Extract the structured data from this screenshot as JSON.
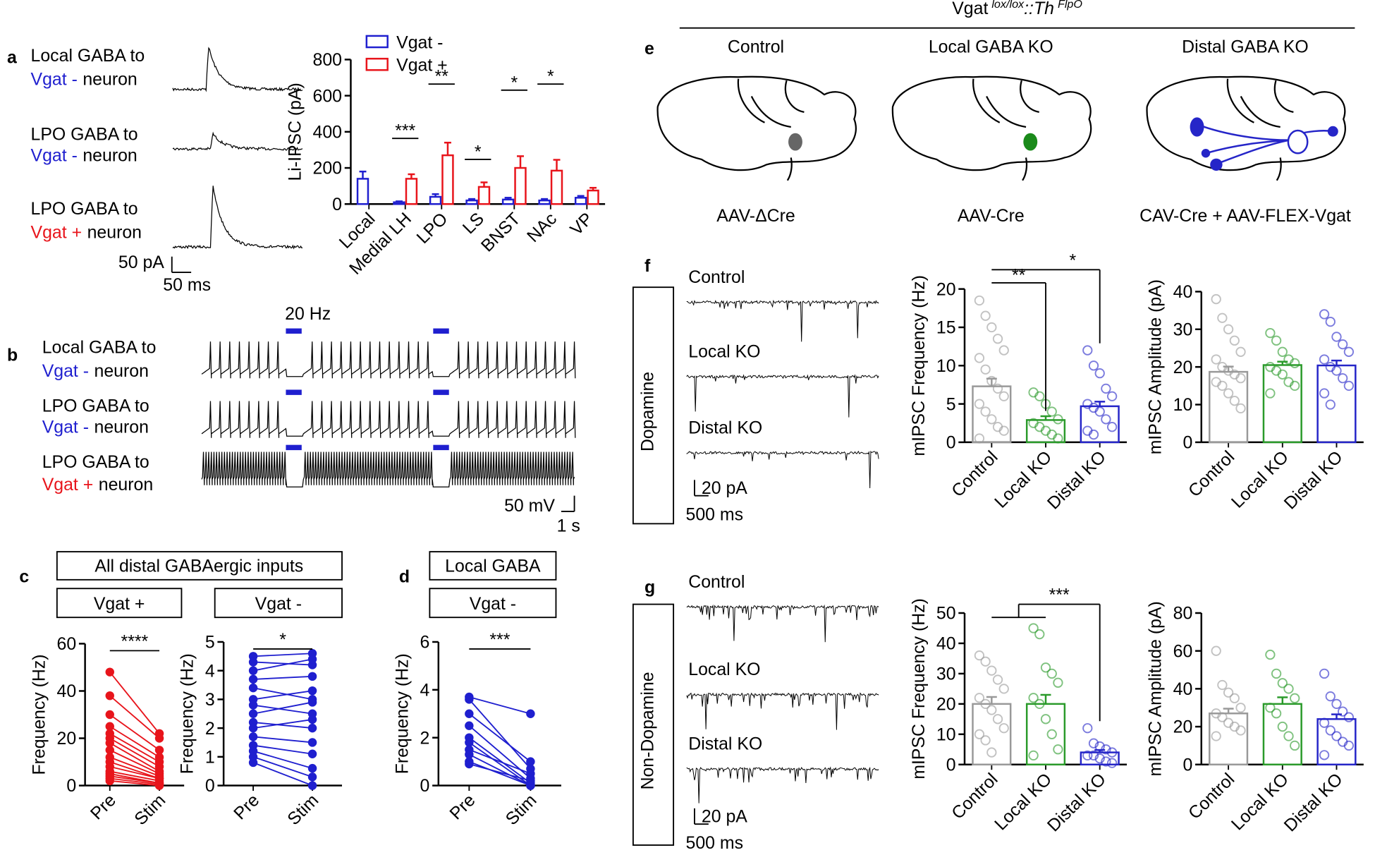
{
  "panels": [
    "a",
    "b",
    "c",
    "d",
    "e",
    "f",
    "g"
  ],
  "a_rows": [
    {
      "line1": "Local GABA to",
      "cell": "Vgat -",
      "rest": "neuron",
      "color": "#1f1fcf"
    },
    {
      "line1": "LPO GABA to",
      "cell": "Vgat -",
      "rest": "neuron",
      "color": "#1f1fcf"
    },
    {
      "line1": "LPO GABA to",
      "cell": "Vgat +",
      "rest": "neuron",
      "color": "#e8141b"
    }
  ],
  "a_scale": [
    "50 pA",
    "50 ms"
  ],
  "b_rows": [
    {
      "line1": "Local GABA to",
      "cell": "Vgat -",
      "rest": "neuron",
      "color": "#1f1fcf"
    },
    {
      "line1": "LPO GABA to",
      "cell": "Vgat -",
      "rest": "neuron",
      "color": "#1f1fcf"
    },
    {
      "line1": "LPO GABA to",
      "cell": "Vgat +",
      "rest": "neuron",
      "color": "#e8141b"
    }
  ],
  "b_stim": "20 Hz",
  "b_scale": [
    "50 mV",
    "1 s"
  ],
  "c_header": "All distal GABAergic inputs",
  "d_header": "Local GABA",
  "e": {
    "title": "Vgat",
    "sup1": "lox/lox",
    "mid": "::Th",
    "sup2": "FlpO",
    "columns": [
      "Control",
      "Local GABA KO",
      "Distal GABA KO"
    ],
    "viruses": [
      "AAV-ΔCre",
      "AAV-Cre",
      "CAV-Cre + AAV-FLEX-Vgat"
    ]
  },
  "f": {
    "group": "Dopamine",
    "traces": [
      "Control",
      "Local KO",
      "Distal KO"
    ],
    "scale": [
      "20 pA",
      "500 ms"
    ]
  },
  "g": {
    "group": "Non-Dopamine",
    "traces": [
      "Control",
      "Local KO",
      "Distal KO"
    ],
    "scale": [
      "20 pA",
      "500 ms"
    ]
  },
  "chart_data": [
    {
      "type": "bar",
      "ylabel": "Li-IPSC (pA)",
      "categories": [
        "Local",
        "Medial LH",
        "LPO",
        "LS",
        "BNST",
        "NAc",
        "VP"
      ],
      "series": [
        {
          "name": "Vgat -",
          "color": "#1f1fcf",
          "values": [
            140,
            10,
            40,
            20,
            25,
            20,
            35
          ],
          "errors": [
            40,
            5,
            15,
            8,
            10,
            8,
            10
          ]
        },
        {
          "name": "Vgat +",
          "color": "#e8141b",
          "values": [
            null,
            140,
            270,
            95,
            200,
            185,
            75
          ],
          "errors": [
            null,
            25,
            70,
            25,
            65,
            60,
            15
          ]
        }
      ],
      "significance": [
        null,
        "***",
        "**",
        "*",
        "*",
        "*",
        null
      ],
      "ylim": [
        0,
        800
      ],
      "yticks": [
        0,
        200,
        400,
        600,
        800
      ]
    },
    {
      "type": "paired",
      "title": "Vgat +",
      "ylabel": "Frequency (Hz)",
      "categories": [
        "Pre",
        "Stim"
      ],
      "color": "#e8141b",
      "values": [
        [
          48,
          38,
          30,
          25,
          22,
          20,
          18,
          15,
          12,
          10,
          8,
          6,
          5,
          4,
          3,
          2
        ],
        [
          22,
          20,
          15,
          12,
          10,
          8,
          6,
          5,
          4,
          3,
          3,
          2,
          1,
          1,
          0.5,
          0
        ]
      ],
      "significance": "****",
      "ylim": [
        0,
        60
      ],
      "yticks": [
        0,
        20,
        40,
        60
      ]
    },
    {
      "type": "paired",
      "title": "Vgat -",
      "ylabel": "Frequency (Hz)",
      "categories": [
        "Pre",
        "Stim"
      ],
      "color": "#1f1fcf",
      "values": [
        [
          4.5,
          4.3,
          4.0,
          3.7,
          3.4,
          3.0,
          2.8,
          2.5,
          2.2,
          2.0,
          1.7,
          1.4,
          1.2,
          1.0,
          0.8
        ],
        [
          4.6,
          4.2,
          4.4,
          3.8,
          3.0,
          3.3,
          2.5,
          2.9,
          2.0,
          2.3,
          1.5,
          1.1,
          0.6,
          0.3,
          0
        ]
      ],
      "significance": "*",
      "ylim": [
        0,
        5
      ],
      "yticks": [
        0,
        1,
        2,
        3,
        4,
        5
      ]
    },
    {
      "type": "paired",
      "title": "Vgat -",
      "ylabel": "Frequency (Hz)",
      "categories": [
        "Pre",
        "Stim"
      ],
      "color": "#1f1fcf",
      "values": [
        [
          3.7,
          3.6,
          3.0,
          2.5,
          2.0,
          1.8,
          1.5,
          1.3,
          1.0,
          0.9
        ],
        [
          3.0,
          0.7,
          1.0,
          0.3,
          0.1,
          0,
          0.5,
          0,
          0,
          0.2
        ]
      ],
      "significance": "***",
      "ylim": [
        0,
        6
      ],
      "yticks": [
        0,
        2,
        4,
        6
      ]
    },
    {
      "type": "bar",
      "ylabel": "mIPSC Frequency (Hz)",
      "categories": [
        "Control",
        "Local KO",
        "Distal KO"
      ],
      "colors": [
        "#999999",
        "#2a9a2a",
        "#2525c8"
      ],
      "values": [
        7.3,
        2.9,
        4.7
      ],
      "errors": [
        1.0,
        0.5,
        0.6
      ],
      "points": [
        [
          18.5,
          16.5,
          15,
          13.5,
          12,
          11,
          9.5,
          8,
          7,
          6,
          5,
          4,
          3,
          2,
          1.5,
          0.5
        ],
        [
          6.5,
          6,
          5,
          4,
          3,
          2.5,
          2,
          1.5,
          1,
          0.5
        ],
        [
          12,
          10,
          9,
          7,
          6,
          5,
          4.5,
          4,
          3,
          2,
          1.5,
          1
        ]
      ],
      "significance": [
        "**",
        "*"
      ],
      "ylim": [
        0,
        20
      ],
      "yticks": [
        0,
        5,
        10,
        15,
        20
      ]
    },
    {
      "type": "bar",
      "ylabel": "mIPSC Amplitude (pA)",
      "categories": [
        "Control",
        "Local KO",
        "Distal KO"
      ],
      "colors": [
        "#999999",
        "#2a9a2a",
        "#2525c8"
      ],
      "values": [
        18.7,
        20.5,
        20.4
      ],
      "errors": [
        1.4,
        0.9,
        1.3
      ],
      "points": [
        [
          38,
          33,
          30,
          27,
          24,
          22,
          20,
          19,
          18,
          17,
          16,
          15,
          13,
          11,
          9
        ],
        [
          29,
          27,
          24,
          22,
          21,
          20,
          19,
          18,
          16,
          15,
          13
        ],
        [
          34,
          32,
          28,
          26,
          24,
          22,
          20,
          19,
          17,
          15,
          13,
          10
        ]
      ],
      "ylim": [
        0,
        40
      ],
      "yticks": [
        0,
        10,
        20,
        30,
        40
      ]
    },
    {
      "type": "bar",
      "ylabel": "mIPSC Frequency (Hz)",
      "categories": [
        "Control",
        "Local KO",
        "Distal KO"
      ],
      "colors": [
        "#999999",
        "#2a9a2a",
        "#2525c8"
      ],
      "values": [
        20,
        20,
        4
      ],
      "errors": [
        2.3,
        3,
        0.8
      ],
      "points": [
        [
          36,
          34,
          31,
          28,
          25,
          22,
          20,
          18,
          15,
          12,
          10,
          8,
          4
        ],
        [
          45,
          43,
          32,
          30,
          27,
          22,
          20,
          15,
          10,
          5,
          3
        ],
        [
          12,
          7,
          6,
          5,
          4,
          3,
          3,
          2,
          1,
          0.5
        ]
      ],
      "significance": [
        "***"
      ],
      "ylim": [
        0,
        50
      ],
      "yticks": [
        0,
        10,
        20,
        30,
        40,
        50
      ]
    },
    {
      "type": "bar",
      "ylabel": "mIPSC Amplitude (pA)",
      "categories": [
        "Control",
        "Local KO",
        "Distal KO"
      ],
      "colors": [
        "#999999",
        "#2a9a2a",
        "#2525c8"
      ],
      "values": [
        27,
        32,
        24
      ],
      "errors": [
        2.5,
        3.5,
        2.5
      ],
      "points": [
        [
          60,
          42,
          38,
          35,
          30,
          27,
          25,
          22,
          20,
          18,
          15
        ],
        [
          58,
          48,
          43,
          40,
          35,
          30,
          27,
          20,
          15,
          10
        ],
        [
          48,
          36,
          32,
          28,
          25,
          22,
          18,
          15,
          12,
          10,
          5
        ]
      ],
      "ylim": [
        0,
        80
      ],
      "yticks": [
        0,
        20,
        40,
        60,
        80
      ]
    }
  ]
}
